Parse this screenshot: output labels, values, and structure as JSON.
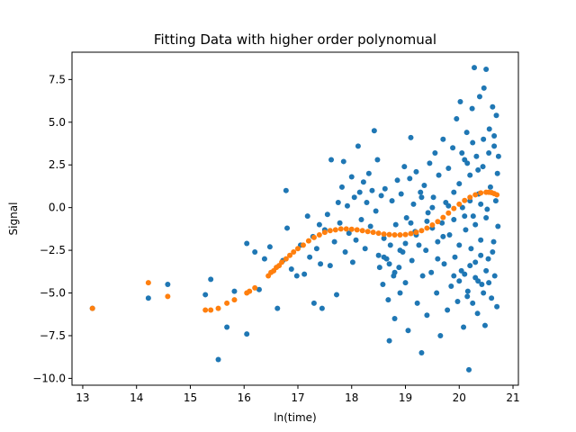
{
  "chart_data": {
    "type": "scatter",
    "title": "Fitting Data with higher order polynomual",
    "xlabel": "ln(time)",
    "ylabel": "Signal",
    "xlim": [
      12.8,
      21.1
    ],
    "ylim": [
      -10.4,
      9.1
    ],
    "xticks": [
      13,
      14,
      15,
      16,
      17,
      18,
      19,
      20,
      21
    ],
    "yticks": [
      -10.0,
      -7.5,
      -5.0,
      -2.5,
      0.0,
      2.5,
      5.0,
      7.5
    ],
    "xtick_labels": [
      "13",
      "14",
      "15",
      "16",
      "17",
      "18",
      "19",
      "20",
      "21"
    ],
    "ytick_labels": [
      "−10.0",
      "−7.5",
      "−5.0",
      "−2.5",
      "0.0",
      "2.5",
      "5.0",
      "7.5"
    ],
    "grid": false,
    "legend": "none",
    "colors": {
      "data": "#1f77b4",
      "fit": "#ff7f0e"
    },
    "series": [
      {
        "kind": "data",
        "points": [
          [
            13.18,
            -5.9
          ],
          [
            14.22,
            -5.3
          ],
          [
            14.58,
            -4.5
          ],
          [
            15.28,
            -5.1
          ],
          [
            15.38,
            -4.2
          ],
          [
            15.52,
            -8.9
          ],
          [
            15.68,
            -7.0
          ],
          [
            15.82,
            -4.9
          ],
          [
            16.05,
            -2.1
          ],
          [
            16.05,
            -7.4
          ],
          [
            16.2,
            -2.6
          ],
          [
            16.28,
            -4.8
          ],
          [
            16.38,
            -3.0
          ],
          [
            16.48,
            -2.3
          ],
          [
            16.62,
            -5.9
          ],
          [
            16.72,
            -3.1
          ],
          [
            16.78,
            1.0
          ],
          [
            16.8,
            -1.2
          ],
          [
            16.88,
            -3.6
          ],
          [
            16.98,
            -4.0
          ],
          [
            17.05,
            -2.2
          ],
          [
            17.12,
            -3.9
          ],
          [
            17.18,
            -0.5
          ],
          [
            17.22,
            -2.9
          ],
          [
            17.28,
            -1.7
          ],
          [
            17.3,
            -5.6
          ],
          [
            17.35,
            -2.4
          ],
          [
            17.4,
            -1.0
          ],
          [
            17.42,
            -3.3
          ],
          [
            17.45,
            -5.9
          ],
          [
            17.5,
            -1.3
          ],
          [
            17.55,
            -0.4
          ],
          [
            17.6,
            -3.4
          ],
          [
            17.62,
            2.8
          ],
          [
            17.68,
            -2.0
          ],
          [
            17.72,
            -5.1
          ],
          [
            17.75,
            0.3
          ],
          [
            17.78,
            -0.9
          ],
          [
            17.82,
            1.2
          ],
          [
            17.85,
            2.7
          ],
          [
            17.88,
            -2.6
          ],
          [
            17.92,
            0.1
          ],
          [
            17.95,
            -1.5
          ],
          [
            18.0,
            1.8
          ],
          [
            18.02,
            -3.2
          ],
          [
            18.05,
            0.6
          ],
          [
            18.08,
            -1.9
          ],
          [
            18.12,
            3.6
          ],
          [
            18.15,
            0.9
          ],
          [
            18.18,
            -0.7
          ],
          [
            18.22,
            1.5
          ],
          [
            18.25,
            -2.4
          ],
          [
            18.28,
            0.3
          ],
          [
            18.32,
            2.0
          ],
          [
            18.35,
            -1.1
          ],
          [
            18.38,
            1.0
          ],
          [
            18.42,
            4.5
          ],
          [
            18.45,
            -0.2
          ],
          [
            18.48,
            2.8
          ],
          [
            18.5,
            -2.8
          ],
          [
            18.52,
            -3.5
          ],
          [
            18.55,
            0.7
          ],
          [
            18.58,
            -4.5
          ],
          [
            18.6,
            -1.8
          ],
          [
            18.62,
            1.1
          ],
          [
            18.65,
            -3.0
          ],
          [
            18.68,
            -5.4
          ],
          [
            18.7,
            -7.8
          ],
          [
            18.72,
            -2.2
          ],
          [
            18.75,
            0.4
          ],
          [
            18.78,
            -4.0
          ],
          [
            18.8,
            -6.5
          ],
          [
            18.82,
            -1.0
          ],
          [
            18.85,
            1.6
          ],
          [
            18.88,
            -3.5
          ],
          [
            18.9,
            -5.0
          ],
          [
            18.92,
            0.8
          ],
          [
            18.95,
            -2.6
          ],
          [
            18.98,
            2.4
          ],
          [
            19.0,
            -4.4
          ],
          [
            19.02,
            -0.6
          ],
          [
            19.05,
            -7.2
          ],
          [
            19.08,
            1.7
          ],
          [
            19.1,
            4.1
          ],
          [
            19.12,
            -3.1
          ],
          [
            19.15,
            0.2
          ],
          [
            19.18,
            -1.4
          ],
          [
            19.2,
            2.1
          ],
          [
            19.22,
            -5.6
          ],
          [
            19.25,
            -2.2
          ],
          [
            19.28,
            0.9
          ],
          [
            19.3,
            -8.5
          ],
          [
            19.32,
            -4.0
          ],
          [
            19.35,
            1.3
          ],
          [
            19.38,
            -2.5
          ],
          [
            19.4,
            -6.3
          ],
          [
            19.42,
            -0.3
          ],
          [
            19.45,
            2.6
          ],
          [
            19.48,
            -3.8
          ],
          [
            19.5,
            -1.2
          ],
          [
            19.52,
            0.6
          ],
          [
            19.55,
            3.2
          ],
          [
            19.58,
            -5.0
          ],
          [
            19.6,
            -2.0
          ],
          [
            19.62,
            1.9
          ],
          [
            19.65,
            -7.5
          ],
          [
            19.68,
            -0.9
          ],
          [
            19.7,
            4.0
          ],
          [
            19.72,
            -3.3
          ],
          [
            19.75,
            0.3
          ],
          [
            19.78,
            -6.0
          ],
          [
            19.8,
            2.3
          ],
          [
            19.82,
            -1.6
          ],
          [
            19.85,
            -4.6
          ],
          [
            19.88,
            3.5
          ],
          [
            19.9,
            0.9
          ],
          [
            19.92,
            -2.9
          ],
          [
            19.95,
            5.2
          ],
          [
            19.97,
            -5.5
          ],
          [
            20.0,
            1.4
          ],
          [
            20.02,
            6.2
          ],
          [
            20.04,
            -3.7
          ],
          [
            20.06,
            0.0
          ],
          [
            20.08,
            -7.0
          ],
          [
            20.1,
            2.8
          ],
          [
            20.12,
            -1.3
          ],
          [
            20.14,
            4.4
          ],
          [
            20.16,
            -4.9
          ],
          [
            20.18,
            -9.5
          ],
          [
            20.2,
            1.9
          ],
          [
            20.22,
            -2.4
          ],
          [
            20.24,
            5.8
          ],
          [
            20.26,
            -0.5
          ],
          [
            20.28,
            8.2
          ],
          [
            20.3,
            -3.2
          ],
          [
            20.32,
            3.0
          ],
          [
            20.34,
            -6.2
          ],
          [
            20.36,
            0.8
          ],
          [
            20.38,
            6.5
          ],
          [
            20.4,
            -1.9
          ],
          [
            20.42,
            -4.5
          ],
          [
            20.44,
            2.4
          ],
          [
            20.46,
            7.0
          ],
          [
            20.48,
            -6.9
          ],
          [
            20.5,
            8.1
          ],
          [
            20.52,
            -0.1
          ],
          [
            20.54,
            -3.0
          ],
          [
            20.56,
            4.6
          ],
          [
            20.58,
            1.2
          ],
          [
            20.6,
            -5.3
          ],
          [
            20.62,
            5.9
          ],
          [
            20.64,
            -2.0
          ],
          [
            20.65,
            3.6
          ],
          [
            20.66,
            -4.0
          ],
          [
            20.68,
            0.4
          ],
          [
            20.69,
            5.4
          ],
          [
            20.7,
            -5.8
          ],
          [
            20.71,
            2.0
          ],
          [
            20.72,
            -1.1
          ],
          [
            20.73,
            3.0
          ],
          [
            18.6,
            -2.9
          ],
          [
            18.7,
            -3.3
          ],
          [
            18.8,
            -3.8
          ],
          [
            18.9,
            -2.5
          ],
          [
            19.0,
            -2.1
          ],
          [
            19.1,
            -0.9
          ],
          [
            19.2,
            -1.6
          ],
          [
            19.3,
            0.6
          ],
          [
            19.4,
            -0.8
          ],
          [
            19.5,
            0.0
          ],
          [
            19.6,
            -3.0
          ],
          [
            19.7,
            -1.7
          ],
          [
            19.8,
            0.1
          ],
          [
            19.9,
            -0.7
          ],
          [
            20.0,
            -2.2
          ],
          [
            20.1,
            -0.5
          ],
          [
            20.2,
            0.4
          ],
          [
            20.3,
            -1.0
          ],
          [
            20.4,
            0.2
          ],
          [
            20.5,
            -0.6
          ],
          [
            20.05,
            3.2
          ],
          [
            20.15,
            2.6
          ],
          [
            20.25,
            3.8
          ],
          [
            20.35,
            2.2
          ],
          [
            20.45,
            4.0
          ],
          [
            20.55,
            3.2
          ],
          [
            20.65,
            4.2
          ],
          [
            20.15,
            -5.2
          ],
          [
            20.25,
            -5.6
          ],
          [
            20.35,
            -4.3
          ],
          [
            20.45,
            -5.0
          ],
          [
            20.55,
            -4.4
          ],
          [
            20.62,
            -2.6
          ],
          [
            20.5,
            -3.7
          ],
          [
            20.4,
            -2.8
          ],
          [
            20.3,
            -4.1
          ],
          [
            20.2,
            -3.4
          ],
          [
            20.1,
            -3.9
          ],
          [
            20.0,
            -4.3
          ],
          [
            19.9,
            -4.0
          ]
        ]
      },
      {
        "kind": "fit",
        "points": [
          [
            13.18,
            -5.9
          ],
          [
            14.22,
            -4.4
          ],
          [
            14.58,
            -5.2
          ],
          [
            15.28,
            -6.0
          ],
          [
            15.38,
            -6.0
          ],
          [
            15.52,
            -5.9
          ],
          [
            15.68,
            -5.6
          ],
          [
            15.82,
            -5.4
          ],
          [
            16.05,
            -5.0
          ],
          [
            16.1,
            -4.9
          ],
          [
            16.2,
            -4.7
          ],
          [
            16.45,
            -4.0
          ],
          [
            16.5,
            -3.8
          ],
          [
            16.55,
            -3.7
          ],
          [
            16.6,
            -3.5
          ],
          [
            16.65,
            -3.4
          ],
          [
            16.7,
            -3.2
          ],
          [
            16.78,
            -3.0
          ],
          [
            16.85,
            -2.8
          ],
          [
            16.92,
            -2.6
          ],
          [
            17.0,
            -2.4
          ],
          [
            17.1,
            -2.2
          ],
          [
            17.2,
            -1.95
          ],
          [
            17.3,
            -1.75
          ],
          [
            17.4,
            -1.6
          ],
          [
            17.5,
            -1.45
          ],
          [
            17.6,
            -1.35
          ],
          [
            17.7,
            -1.3
          ],
          [
            17.8,
            -1.25
          ],
          [
            17.9,
            -1.25
          ],
          [
            18.0,
            -1.27
          ],
          [
            18.1,
            -1.3
          ],
          [
            18.2,
            -1.35
          ],
          [
            18.3,
            -1.4
          ],
          [
            18.4,
            -1.45
          ],
          [
            18.5,
            -1.5
          ],
          [
            18.6,
            -1.55
          ],
          [
            18.7,
            -1.58
          ],
          [
            18.8,
            -1.6
          ],
          [
            18.9,
            -1.6
          ],
          [
            19.0,
            -1.58
          ],
          [
            19.1,
            -1.52
          ],
          [
            19.2,
            -1.45
          ],
          [
            19.3,
            -1.35
          ],
          [
            19.4,
            -1.2
          ],
          [
            19.5,
            -1.02
          ],
          [
            19.6,
            -0.82
          ],
          [
            19.7,
            -0.58
          ],
          [
            19.8,
            -0.32
          ],
          [
            19.9,
            -0.05
          ],
          [
            20.0,
            0.2
          ],
          [
            20.1,
            0.42
          ],
          [
            20.2,
            0.6
          ],
          [
            20.3,
            0.75
          ],
          [
            20.4,
            0.86
          ],
          [
            20.5,
            0.9
          ],
          [
            20.55,
            0.9
          ],
          [
            20.6,
            0.88
          ],
          [
            20.65,
            0.82
          ],
          [
            20.7,
            0.75
          ]
        ]
      }
    ]
  }
}
